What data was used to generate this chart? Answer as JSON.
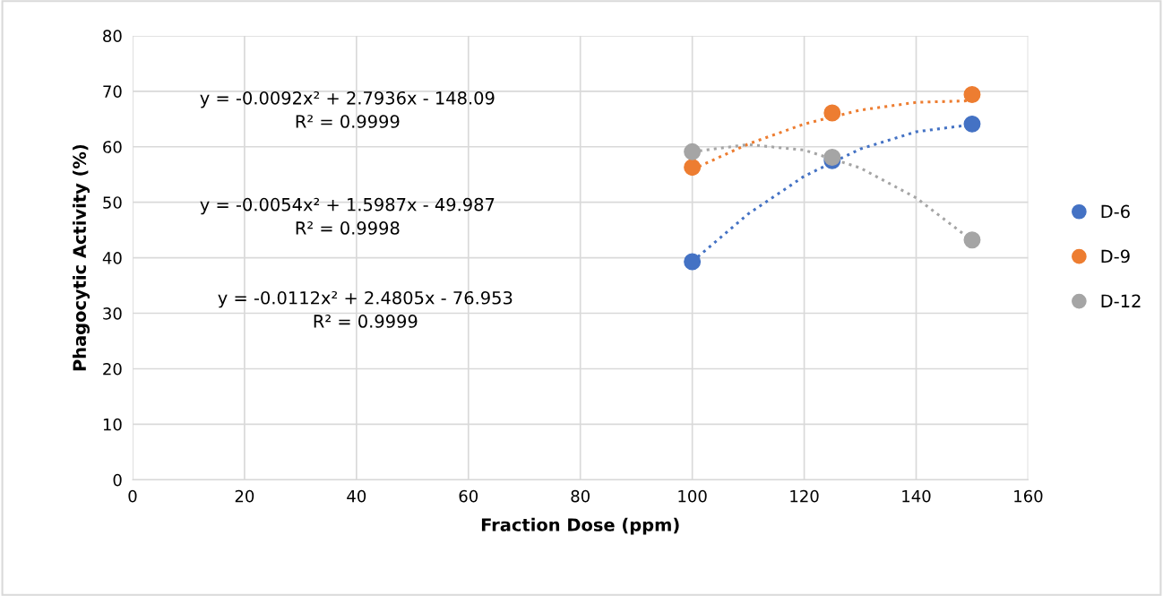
{
  "chart_data": {
    "type": "scatter",
    "xlabel": "Fraction Dose (ppm)",
    "ylabel": "Phagocytic Activity (%)",
    "x": [
      100,
      125,
      150
    ],
    "series": [
      {
        "name": "D-6",
        "color": "#4472c4",
        "values": [
          39.3,
          57.5,
          64.1
        ]
      },
      {
        "name": "D-9",
        "color": "#ed7d31",
        "values": [
          56.3,
          66.1,
          69.4
        ]
      },
      {
        "name": "D-12",
        "color": "#a5a5a5",
        "values": [
          59.1,
          58.1,
          43.2
        ]
      },
      {
        "type": "line",
        "color": "#4472c4",
        "line_style": "dotted",
        "marker": "none",
        "x": [
          100,
          110,
          120,
          130,
          140,
          150
        ],
        "values": [
          39.3,
          47.9,
          54.7,
          59.6,
          62.7,
          64.0
        ]
      },
      {
        "type": "line",
        "color": "#ed7d31",
        "line_style": "dotted",
        "marker": "none",
        "x": [
          100,
          110,
          120,
          130,
          140,
          150
        ],
        "values": [
          55.9,
          60.5,
          64.1,
          66.6,
          68.0,
          68.3
        ]
      },
      {
        "type": "line",
        "color": "#a5a5a5",
        "line_style": "dotted",
        "marker": "none",
        "x": [
          100,
          110,
          120,
          130,
          140,
          150
        ],
        "values": [
          59.1,
          60.4,
          59.4,
          56.2,
          50.8,
          43.1
        ]
      }
    ],
    "marker": "circle",
    "xlim": [
      0,
      160
    ],
    "xticks": [
      0,
      20,
      40,
      60,
      80,
      100,
      120,
      140,
      160
    ],
    "ylim": [
      0,
      80
    ],
    "yticks": [
      0,
      10,
      20,
      30,
      40,
      50,
      60,
      70,
      80
    ],
    "grid": true,
    "legend": "right",
    "annotations": [
      "y = -0.0092x² + 2.7936x - 148.09\nR² = 0.9999",
      "y = -0.0054x² + 1.5987x - 49.987\nR² = 0.9998",
      "y = -0.0112x² + 2.4805x - 76.953\nR² = 0.9999"
    ]
  }
}
